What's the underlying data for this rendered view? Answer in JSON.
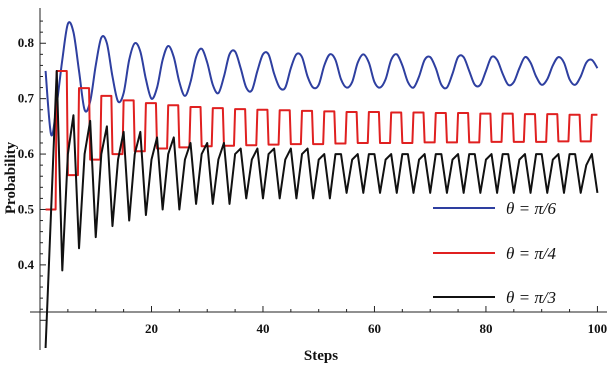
{
  "chart_data": {
    "type": "line",
    "xlabel": "Steps",
    "ylabel": "Probability",
    "xlim": [
      0,
      101
    ],
    "ylim": [
      0.25,
      0.86
    ],
    "x_ticks": [
      20,
      40,
      60,
      80,
      100
    ],
    "y_ticks": [
      0.4,
      0.5,
      0.6,
      0.7,
      0.8
    ],
    "x_tick_labels": [
      "20",
      "40",
      "60",
      "80",
      "100"
    ],
    "y_tick_labels": [
      "0.4",
      "0.5",
      "0.6",
      "0.7",
      "0.8"
    ],
    "grid": false,
    "legend_position": "bottom-right",
    "series": [
      {
        "name": "θ = π/6",
        "color": "#2e3fa0",
        "style": "smooth",
        "x": [
          1,
          2,
          3,
          4,
          5,
          6,
          7,
          8,
          9,
          10,
          11,
          12,
          13,
          14,
          15,
          16,
          17,
          18,
          19,
          20,
          21,
          22,
          23,
          24,
          25,
          26,
          27,
          28,
          29,
          30,
          31,
          32,
          33,
          34,
          35,
          36,
          37,
          38,
          39,
          40,
          41,
          42,
          43,
          44,
          45,
          46,
          47,
          48,
          49,
          50,
          51,
          52,
          53,
          54,
          55,
          56,
          57,
          58,
          59,
          60,
          61,
          62,
          63,
          64,
          65,
          66,
          67,
          68,
          69,
          70,
          71,
          72,
          73,
          74,
          75,
          76,
          77,
          78,
          79,
          80,
          81,
          82,
          83,
          84,
          85,
          86,
          87,
          88,
          89,
          90,
          91,
          92,
          93,
          94,
          95,
          96,
          97,
          98,
          99,
          100
        ],
        "y": [
          0.75,
          0.635,
          0.69,
          0.77,
          0.835,
          0.82,
          0.75,
          0.68,
          0.695,
          0.76,
          0.81,
          0.8,
          0.74,
          0.695,
          0.71,
          0.77,
          0.8,
          0.785,
          0.735,
          0.7,
          0.72,
          0.77,
          0.795,
          0.775,
          0.73,
          0.705,
          0.73,
          0.775,
          0.79,
          0.765,
          0.725,
          0.71,
          0.74,
          0.78,
          0.785,
          0.755,
          0.72,
          0.715,
          0.75,
          0.78,
          0.78,
          0.745,
          0.72,
          0.72,
          0.755,
          0.78,
          0.775,
          0.74,
          0.72,
          0.725,
          0.76,
          0.78,
          0.77,
          0.735,
          0.72,
          0.73,
          0.765,
          0.78,
          0.765,
          0.73,
          0.72,
          0.735,
          0.77,
          0.78,
          0.76,
          0.73,
          0.72,
          0.74,
          0.77,
          0.775,
          0.755,
          0.725,
          0.72,
          0.745,
          0.775,
          0.775,
          0.75,
          0.725,
          0.725,
          0.75,
          0.775,
          0.77,
          0.745,
          0.725,
          0.73,
          0.755,
          0.775,
          0.765,
          0.74,
          0.725,
          0.735,
          0.76,
          0.775,
          0.765,
          0.735,
          0.725,
          0.74,
          0.765,
          0.77,
          0.755
        ]
      },
      {
        "name": "θ = π/4",
        "color": "#e02020",
        "style": "step",
        "x": [
          1,
          2,
          3,
          4,
          5,
          6,
          7,
          8,
          9,
          10,
          11,
          12,
          13,
          14,
          15,
          16,
          17,
          18,
          19,
          20,
          21,
          22,
          23,
          24,
          25,
          26,
          27,
          28,
          29,
          30,
          31,
          32,
          33,
          34,
          35,
          36,
          37,
          38,
          39,
          40,
          41,
          42,
          43,
          44,
          45,
          46,
          47,
          48,
          49,
          50,
          51,
          52,
          53,
          54,
          55,
          56,
          57,
          58,
          59,
          60,
          61,
          62,
          63,
          64,
          65,
          66,
          67,
          68,
          69,
          70,
          71,
          72,
          73,
          74,
          75,
          76,
          77,
          78,
          79,
          80,
          81,
          82,
          83,
          84,
          85,
          86,
          87,
          88,
          89,
          90,
          91,
          92,
          93,
          94,
          95,
          96,
          97,
          98,
          99,
          100
        ],
        "y": [
          0.5,
          0.5,
          0.75,
          0.75,
          0.562,
          0.562,
          0.719,
          0.719,
          0.59,
          0.59,
          0.705,
          0.705,
          0.6,
          0.6,
          0.697,
          0.697,
          0.605,
          0.605,
          0.692,
          0.692,
          0.61,
          0.61,
          0.688,
          0.688,
          0.612,
          0.612,
          0.685,
          0.685,
          0.614,
          0.614,
          0.683,
          0.683,
          0.615,
          0.615,
          0.681,
          0.681,
          0.616,
          0.616,
          0.68,
          0.68,
          0.617,
          0.617,
          0.679,
          0.679,
          0.618,
          0.618,
          0.678,
          0.678,
          0.618,
          0.618,
          0.677,
          0.677,
          0.619,
          0.619,
          0.676,
          0.676,
          0.62,
          0.62,
          0.676,
          0.676,
          0.62,
          0.62,
          0.675,
          0.675,
          0.62,
          0.62,
          0.675,
          0.675,
          0.621,
          0.621,
          0.674,
          0.674,
          0.621,
          0.621,
          0.674,
          0.674,
          0.621,
          0.621,
          0.673,
          0.673,
          0.622,
          0.622,
          0.673,
          0.673,
          0.622,
          0.622,
          0.672,
          0.672,
          0.622,
          0.622,
          0.672,
          0.672,
          0.623,
          0.623,
          0.671,
          0.671,
          0.623,
          0.623,
          0.671,
          0.671
        ]
      },
      {
        "name": "θ = π/3",
        "color": "#111111",
        "style": "linear",
        "x": [
          1,
          2,
          3,
          4,
          5,
          6,
          7,
          8,
          9,
          10,
          11,
          12,
          13,
          14,
          15,
          16,
          17,
          18,
          19,
          20,
          21,
          22,
          23,
          24,
          25,
          26,
          27,
          28,
          29,
          30,
          31,
          32,
          33,
          34,
          35,
          36,
          37,
          38,
          39,
          40,
          41,
          42,
          43,
          44,
          45,
          46,
          47,
          48,
          49,
          50,
          51,
          52,
          53,
          54,
          55,
          56,
          57,
          58,
          59,
          60,
          61,
          62,
          63,
          64,
          65,
          66,
          67,
          68,
          69,
          70,
          71,
          72,
          73,
          74,
          75,
          76,
          77,
          78,
          79,
          80,
          81,
          82,
          83,
          84,
          85,
          86,
          87,
          88,
          89,
          90,
          91,
          92,
          93,
          94,
          95,
          96,
          97,
          98,
          99,
          100
        ],
        "y": [
          0.25,
          0.5,
          0.75,
          0.39,
          0.6,
          0.67,
          0.43,
          0.6,
          0.66,
          0.45,
          0.6,
          0.65,
          0.47,
          0.59,
          0.64,
          0.48,
          0.6,
          0.64,
          0.49,
          0.59,
          0.63,
          0.5,
          0.6,
          0.63,
          0.5,
          0.59,
          0.62,
          0.51,
          0.6,
          0.62,
          0.51,
          0.59,
          0.62,
          0.51,
          0.6,
          0.61,
          0.52,
          0.59,
          0.61,
          0.52,
          0.6,
          0.61,
          0.52,
          0.59,
          0.61,
          0.52,
          0.6,
          0.61,
          0.52,
          0.59,
          0.6,
          0.52,
          0.6,
          0.6,
          0.53,
          0.59,
          0.6,
          0.53,
          0.6,
          0.6,
          0.53,
          0.59,
          0.6,
          0.53,
          0.6,
          0.6,
          0.53,
          0.59,
          0.6,
          0.53,
          0.6,
          0.6,
          0.53,
          0.59,
          0.6,
          0.53,
          0.6,
          0.6,
          0.53,
          0.59,
          0.6,
          0.53,
          0.6,
          0.6,
          0.53,
          0.59,
          0.6,
          0.53,
          0.6,
          0.6,
          0.53,
          0.59,
          0.6,
          0.53,
          0.6,
          0.6,
          0.53,
          0.58,
          0.6,
          0.53
        ]
      }
    ]
  }
}
